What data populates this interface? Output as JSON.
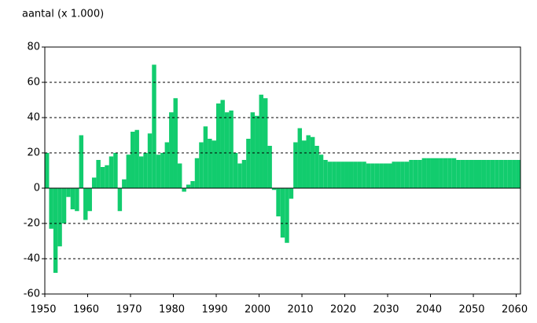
{
  "chart_data": {
    "type": "bar",
    "title": "aantal (x 1.000)",
    "x": [
      1950,
      1951,
      1952,
      1953,
      1954,
      1955,
      1956,
      1957,
      1958,
      1959,
      1960,
      1961,
      1962,
      1963,
      1964,
      1965,
      1966,
      1967,
      1968,
      1969,
      1970,
      1971,
      1972,
      1973,
      1974,
      1975,
      1976,
      1977,
      1978,
      1979,
      1980,
      1981,
      1982,
      1983,
      1984,
      1985,
      1986,
      1987,
      1988,
      1989,
      1990,
      1991,
      1992,
      1993,
      1994,
      1995,
      1996,
      1997,
      1998,
      1999,
      2000,
      2001,
      2002,
      2003,
      2004,
      2005,
      2006,
      2007,
      2008,
      2009,
      2010,
      2011,
      2012,
      2013,
      2014,
      2015,
      2016,
      2017,
      2018,
      2019,
      2020,
      2021,
      2022,
      2023,
      2024,
      2025,
      2026,
      2027,
      2028,
      2029,
      2030,
      2031,
      2032,
      2033,
      2034,
      2035,
      2036,
      2037,
      2038,
      2039,
      2040,
      2041,
      2042,
      2043,
      2044,
      2045,
      2046,
      2047,
      2048,
      2049,
      2050,
      2051,
      2052,
      2053,
      2054,
      2055,
      2056,
      2057,
      2058,
      2059,
      2060
    ],
    "values": [
      20,
      -23,
      -48,
      -33,
      -20,
      -5,
      -12,
      -13,
      30,
      -18,
      -13,
      6,
      16,
      12,
      13,
      18,
      20,
      -13,
      5,
      19,
      32,
      33,
      18,
      20,
      31,
      70,
      19,
      20,
      26,
      43,
      51,
      14,
      -2,
      2,
      4,
      17,
      26,
      35,
      28,
      27,
      48,
      50,
      43,
      44,
      20,
      14,
      16,
      28,
      43,
      41,
      53,
      51,
      24,
      -1,
      -16,
      -28,
      -31,
      -6,
      26,
      34,
      27,
      30,
      29,
      24,
      19,
      16,
      15,
      15,
      15,
      15,
      15,
      15,
      15,
      15,
      15,
      14,
      14,
      14,
      14,
      14,
      14,
      15,
      15,
      15,
      15,
      16,
      16,
      16,
      17,
      17,
      17,
      17,
      17,
      17,
      17,
      17,
      16,
      16,
      16,
      16,
      16,
      16,
      16,
      16,
      16,
      16,
      16,
      16,
      16,
      16,
      16
    ],
    "color": "#12cc6e",
    "xlim": [
      1950,
      2061
    ],
    "xticks": [
      1950,
      1960,
      1970,
      1980,
      1990,
      2000,
      2010,
      2020,
      2030,
      2040,
      2050,
      2060
    ],
    "ylim": [
      -60,
      80
    ],
    "yticks": [
      80,
      60,
      40,
      20,
      0,
      -20,
      -40,
      -60
    ],
    "grid": true
  }
}
